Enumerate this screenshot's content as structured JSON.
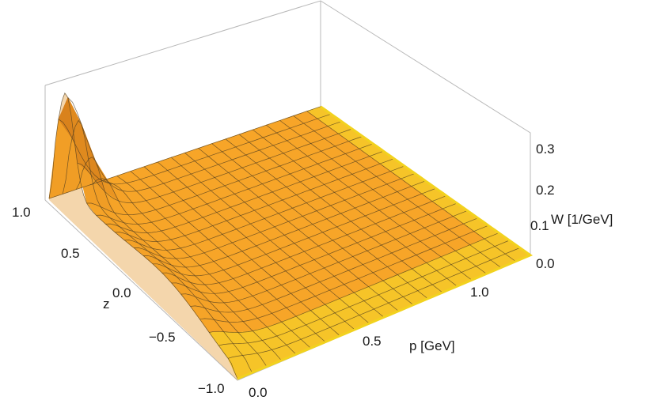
{
  "chart_data": {
    "type": "surface3d",
    "title": "",
    "xlabel": "p [GeV]",
    "ylabel": "z",
    "zlabel": "W [1/GeV]",
    "x_ticks": [
      "0.0",
      "0.5",
      "1.0"
    ],
    "y_ticks": [
      "1.0",
      "0.5",
      "0.0",
      "−0.5",
      "−1.0"
    ],
    "z_ticks": [
      "0.0",
      "0.1",
      "0.2",
      "0.3"
    ],
    "x_range": [
      0,
      1.25
    ],
    "y_range": [
      -1,
      1
    ],
    "z_range": [
      0,
      0.32
    ],
    "grid": {
      "p_lines": 21,
      "z_lines": 21
    },
    "surface_samples": [
      {
        "p": 0.0,
        "z": 1.0,
        "W": 0.0
      },
      {
        "p": 0.0,
        "z": 0.85,
        "W": 0.31
      },
      {
        "p": 0.0,
        "z": 0.5,
        "W": 0.16
      },
      {
        "p": 0.0,
        "z": 0.0,
        "W": 0.08
      },
      {
        "p": 0.0,
        "z": -0.5,
        "W": 0.04
      },
      {
        "p": 0.0,
        "z": -1.0,
        "W": 0.0
      },
      {
        "p": 0.5,
        "z": 0.85,
        "W": 0.02
      },
      {
        "p": 1.0,
        "z": 0.0,
        "W": 0.005
      }
    ],
    "surface_color": "#F7A21C",
    "edge_color": "#F2D21E",
    "mesh_color": "#4a3a20"
  }
}
